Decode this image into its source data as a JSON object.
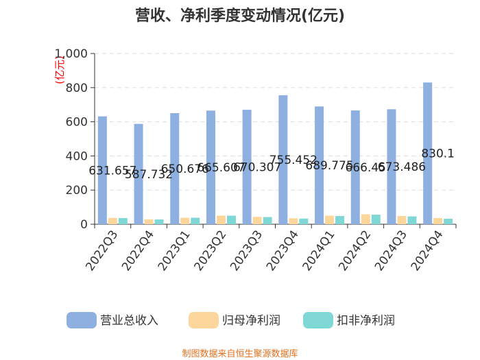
{
  "chart_data": {
    "type": "bar",
    "title": "营收、净利季度变动情况(亿元)",
    "unit": "(亿元)",
    "categories": [
      "2022Q3",
      "2022Q4",
      "2023Q1",
      "2023Q2",
      "2023Q3",
      "2023Q4",
      "2024Q1",
      "2024Q2",
      "2024Q3",
      "2024Q4"
    ],
    "ylim": [
      0,
      1000
    ],
    "yticks": [
      "0",
      "200",
      "400",
      "600",
      "800",
      "1,000"
    ],
    "grid": true,
    "legend_position": "bottom",
    "series": [
      {
        "name": "营业总收入",
        "color": "#8eb0e0",
        "values": [
          631.657,
          587.732,
          650.676,
          665.607,
          670.307,
          755.452,
          689.775,
          666.45,
          673.486,
          830.1
        ],
        "labels": [
          "631.657",
          "587.732",
          "650.676",
          "665.607",
          "670.307",
          "755.452",
          "689.775",
          "666.45",
          "673.486",
          "830.1"
        ]
      },
      {
        "name": "归母净利润",
        "color": "#fcd69a",
        "values": [
          37,
          29,
          38,
          50,
          43,
          35,
          50,
          58,
          48,
          36
        ]
      },
      {
        "name": "扣非净利润",
        "color": "#7fd8d6",
        "values": [
          36,
          28,
          38,
          50,
          42,
          33,
          48,
          56,
          46,
          32
        ]
      }
    ],
    "source": "制图数据来自恒生聚源数据库"
  }
}
